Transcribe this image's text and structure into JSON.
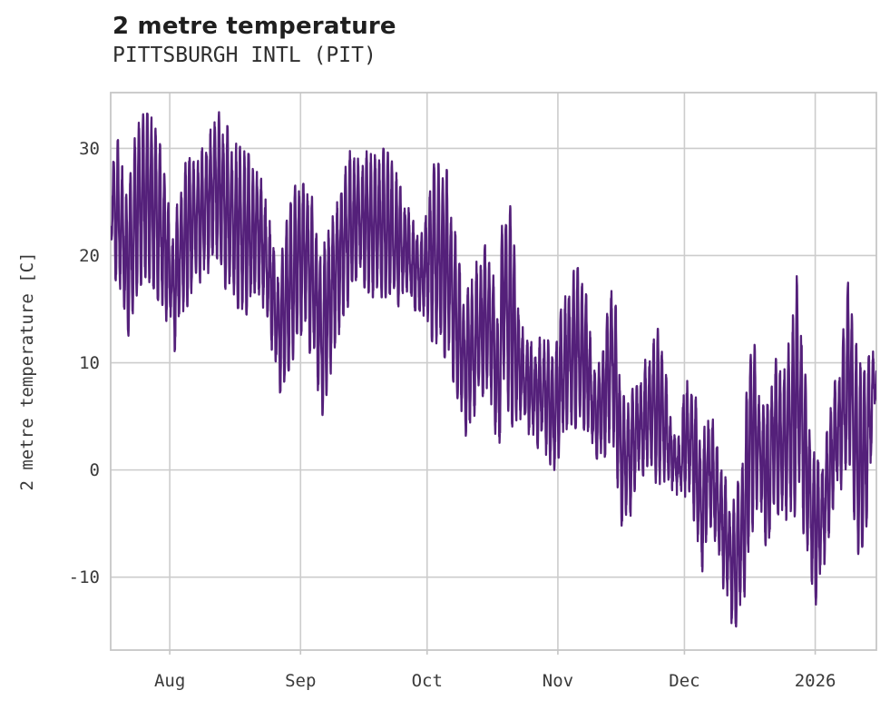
{
  "header": {
    "title": "2 metre temperature",
    "subtitle": "PITTSBURGH INTL (PIT)"
  },
  "chart_data": {
    "type": "line",
    "title": "2 metre temperature",
    "subtitle": "PITTSBURGH INTL (PIT)",
    "ylabel": "2 metre temperature [C]",
    "xlabel": "",
    "series_name": "2 metre temperature",
    "units": "C",
    "sampling": "hourly",
    "line_color": "#54207a",
    "grid": true,
    "grid_color": "#cccccc",
    "spine_color": "#c6c6c6",
    "tick_color": "#3a3a3a",
    "background": "#ffffff",
    "ylim": [
      -16.8,
      35.2
    ],
    "y_ticks": [
      -10,
      0,
      10,
      20,
      30
    ],
    "x_range": [
      "2025-07-18",
      "2026-01-15"
    ],
    "x_ticks": [
      {
        "label": "Aug",
        "date": "2025-08-01"
      },
      {
        "label": "Sep",
        "date": "2025-09-01"
      },
      {
        "label": "Oct",
        "date": "2025-10-01"
      },
      {
        "label": "Nov",
        "date": "2025-11-01"
      },
      {
        "label": "Dec",
        "date": "2025-12-01"
      },
      {
        "label": "2026",
        "date": "2026-01-01"
      }
    ],
    "daily_envelope": [
      {
        "date": "2025-07-18",
        "min": 21,
        "max": 29
      },
      {
        "date": "2025-07-20",
        "min": 17,
        "max": 30
      },
      {
        "date": "2025-07-22",
        "min": 13,
        "max": 24.5
      },
      {
        "date": "2025-07-24",
        "min": 17,
        "max": 31
      },
      {
        "date": "2025-07-26",
        "min": 19,
        "max": 32.5
      },
      {
        "date": "2025-07-28",
        "min": 18,
        "max": 32
      },
      {
        "date": "2025-07-30",
        "min": 16,
        "max": 29
      },
      {
        "date": "2025-08-01",
        "min": 14,
        "max": 23
      },
      {
        "date": "2025-08-02",
        "min": 11.7,
        "max": 22
      },
      {
        "date": "2025-08-04",
        "min": 15,
        "max": 27
      },
      {
        "date": "2025-08-06",
        "min": 17,
        "max": 29
      },
      {
        "date": "2025-08-08",
        "min": 18,
        "max": 29.5
      },
      {
        "date": "2025-08-10",
        "min": 19,
        "max": 31
      },
      {
        "date": "2025-08-12",
        "min": 21,
        "max": 33
      },
      {
        "date": "2025-08-14",
        "min": 18,
        "max": 31.5
      },
      {
        "date": "2025-08-16",
        "min": 16,
        "max": 30.5
      },
      {
        "date": "2025-08-18",
        "min": 16,
        "max": 29
      },
      {
        "date": "2025-08-20",
        "min": 15,
        "max": 28.5
      },
      {
        "date": "2025-08-22",
        "min": 17,
        "max": 28
      },
      {
        "date": "2025-08-24",
        "min": 14,
        "max": 25
      },
      {
        "date": "2025-08-26",
        "min": 10,
        "max": 20
      },
      {
        "date": "2025-08-27",
        "min": 8,
        "max": 18
      },
      {
        "date": "2025-08-29",
        "min": 10,
        "max": 23
      },
      {
        "date": "2025-08-31",
        "min": 12,
        "max": 26
      },
      {
        "date": "2025-09-02",
        "min": 13,
        "max": 28
      },
      {
        "date": "2025-09-04",
        "min": 11,
        "max": 24
      },
      {
        "date": "2025-09-06",
        "min": 5.5,
        "max": 19
      },
      {
        "date": "2025-09-08",
        "min": 9,
        "max": 23
      },
      {
        "date": "2025-09-10",
        "min": 13,
        "max": 26
      },
      {
        "date": "2025-09-12",
        "min": 16,
        "max": 28.5
      },
      {
        "date": "2025-09-14",
        "min": 17,
        "max": 29.5
      },
      {
        "date": "2025-09-16",
        "min": 18,
        "max": 29
      },
      {
        "date": "2025-09-18",
        "min": 17,
        "max": 28.5
      },
      {
        "date": "2025-09-20",
        "min": 17,
        "max": 29.3
      },
      {
        "date": "2025-09-22",
        "min": 17,
        "max": 28.6
      },
      {
        "date": "2025-09-24",
        "min": 16,
        "max": 26.5
      },
      {
        "date": "2025-09-26",
        "min": 17.5,
        "max": 24
      },
      {
        "date": "2025-09-28",
        "min": 15,
        "max": 22.5
      },
      {
        "date": "2025-09-30",
        "min": 15,
        "max": 21
      },
      {
        "date": "2025-10-02",
        "min": 13,
        "max": 28.5
      },
      {
        "date": "2025-10-04",
        "min": 12,
        "max": 27.5
      },
      {
        "date": "2025-10-06",
        "min": 11,
        "max": 27
      },
      {
        "date": "2025-10-08",
        "min": 8,
        "max": 20
      },
      {
        "date": "2025-10-10",
        "min": 4,
        "max": 15
      },
      {
        "date": "2025-10-12",
        "min": 5,
        "max": 18
      },
      {
        "date": "2025-10-14",
        "min": 8,
        "max": 19.5
      },
      {
        "date": "2025-10-16",
        "min": 6,
        "max": 21
      },
      {
        "date": "2025-10-18",
        "min": 0.5,
        "max": 14
      },
      {
        "date": "2025-10-19",
        "min": 8,
        "max": 25.7
      },
      {
        "date": "2025-10-21",
        "min": 5,
        "max": 23.5
      },
      {
        "date": "2025-10-23",
        "min": 4.5,
        "max": 14
      },
      {
        "date": "2025-10-25",
        "min": 4,
        "max": 12
      },
      {
        "date": "2025-10-27",
        "min": 3,
        "max": 11
      },
      {
        "date": "2025-10-29",
        "min": 2.5,
        "max": 12.3
      },
      {
        "date": "2025-10-31",
        "min": 0.7,
        "max": 9
      },
      {
        "date": "2025-11-02",
        "min": 3,
        "max": 14.8
      },
      {
        "date": "2025-11-04",
        "min": 4.5,
        "max": 17.5
      },
      {
        "date": "2025-11-06",
        "min": 5,
        "max": 18
      },
      {
        "date": "2025-11-08",
        "min": 4,
        "max": 15
      },
      {
        "date": "2025-11-10",
        "min": 0,
        "max": 9
      },
      {
        "date": "2025-11-12",
        "min": 2,
        "max": 12
      },
      {
        "date": "2025-11-14",
        "min": 4,
        "max": 18.5
      },
      {
        "date": "2025-11-16",
        "min": -4.8,
        "max": 7
      },
      {
        "date": "2025-11-18",
        "min": -4,
        "max": 6.5
      },
      {
        "date": "2025-11-20",
        "min": 1,
        "max": 7
      },
      {
        "date": "2025-11-22",
        "min": 0,
        "max": 9.8
      },
      {
        "date": "2025-11-24",
        "min": -1,
        "max": 13.5
      },
      {
        "date": "2025-11-26",
        "min": 0,
        "max": 10
      },
      {
        "date": "2025-11-28",
        "min": -1.6,
        "max": 3.5
      },
      {
        "date": "2025-11-30",
        "min": -1.5,
        "max": 2
      },
      {
        "date": "2025-12-01",
        "min": -2,
        "max": 8
      },
      {
        "date": "2025-12-03",
        "min": -3,
        "max": 8
      },
      {
        "date": "2025-12-05",
        "min": -9.9,
        "max": 2
      },
      {
        "date": "2025-12-07",
        "min": -4,
        "max": 5.5
      },
      {
        "date": "2025-12-09",
        "min": -8,
        "max": 1
      },
      {
        "date": "2025-12-11",
        "min": -11.7,
        "max": -2
      },
      {
        "date": "2025-12-13",
        "min": -14.6,
        "max": -4
      },
      {
        "date": "2025-12-15",
        "min": -12,
        "max": 2
      },
      {
        "date": "2025-12-17",
        "min": -5,
        "max": 14.2
      },
      {
        "date": "2025-12-19",
        "min": -3,
        "max": 6
      },
      {
        "date": "2025-12-21",
        "min": -8,
        "max": 5
      },
      {
        "date": "2025-12-22",
        "min": -2,
        "max": 10.2
      },
      {
        "date": "2025-12-24",
        "min": -4,
        "max": 8
      },
      {
        "date": "2025-12-26",
        "min": -5.5,
        "max": 13.6
      },
      {
        "date": "2025-12-28",
        "min": -2,
        "max": 18
      },
      {
        "date": "2025-12-30",
        "min": -7,
        "max": 6
      },
      {
        "date": "2026-01-01",
        "min": -11.9,
        "max": 0
      },
      {
        "date": "2026-01-03",
        "min": -9,
        "max": 1
      },
      {
        "date": "2026-01-05",
        "min": -3,
        "max": 6
      },
      {
        "date": "2026-01-07",
        "min": -1,
        "max": 10
      },
      {
        "date": "2026-01-09",
        "min": 0,
        "max": 18.4
      },
      {
        "date": "2026-01-11",
        "min": -8,
        "max": 10
      },
      {
        "date": "2026-01-13",
        "min": -5,
        "max": 8
      },
      {
        "date": "2026-01-14",
        "min": 0,
        "max": 10.5
      },
      {
        "date": "2026-01-15",
        "min": 6,
        "max": 10
      }
    ]
  }
}
